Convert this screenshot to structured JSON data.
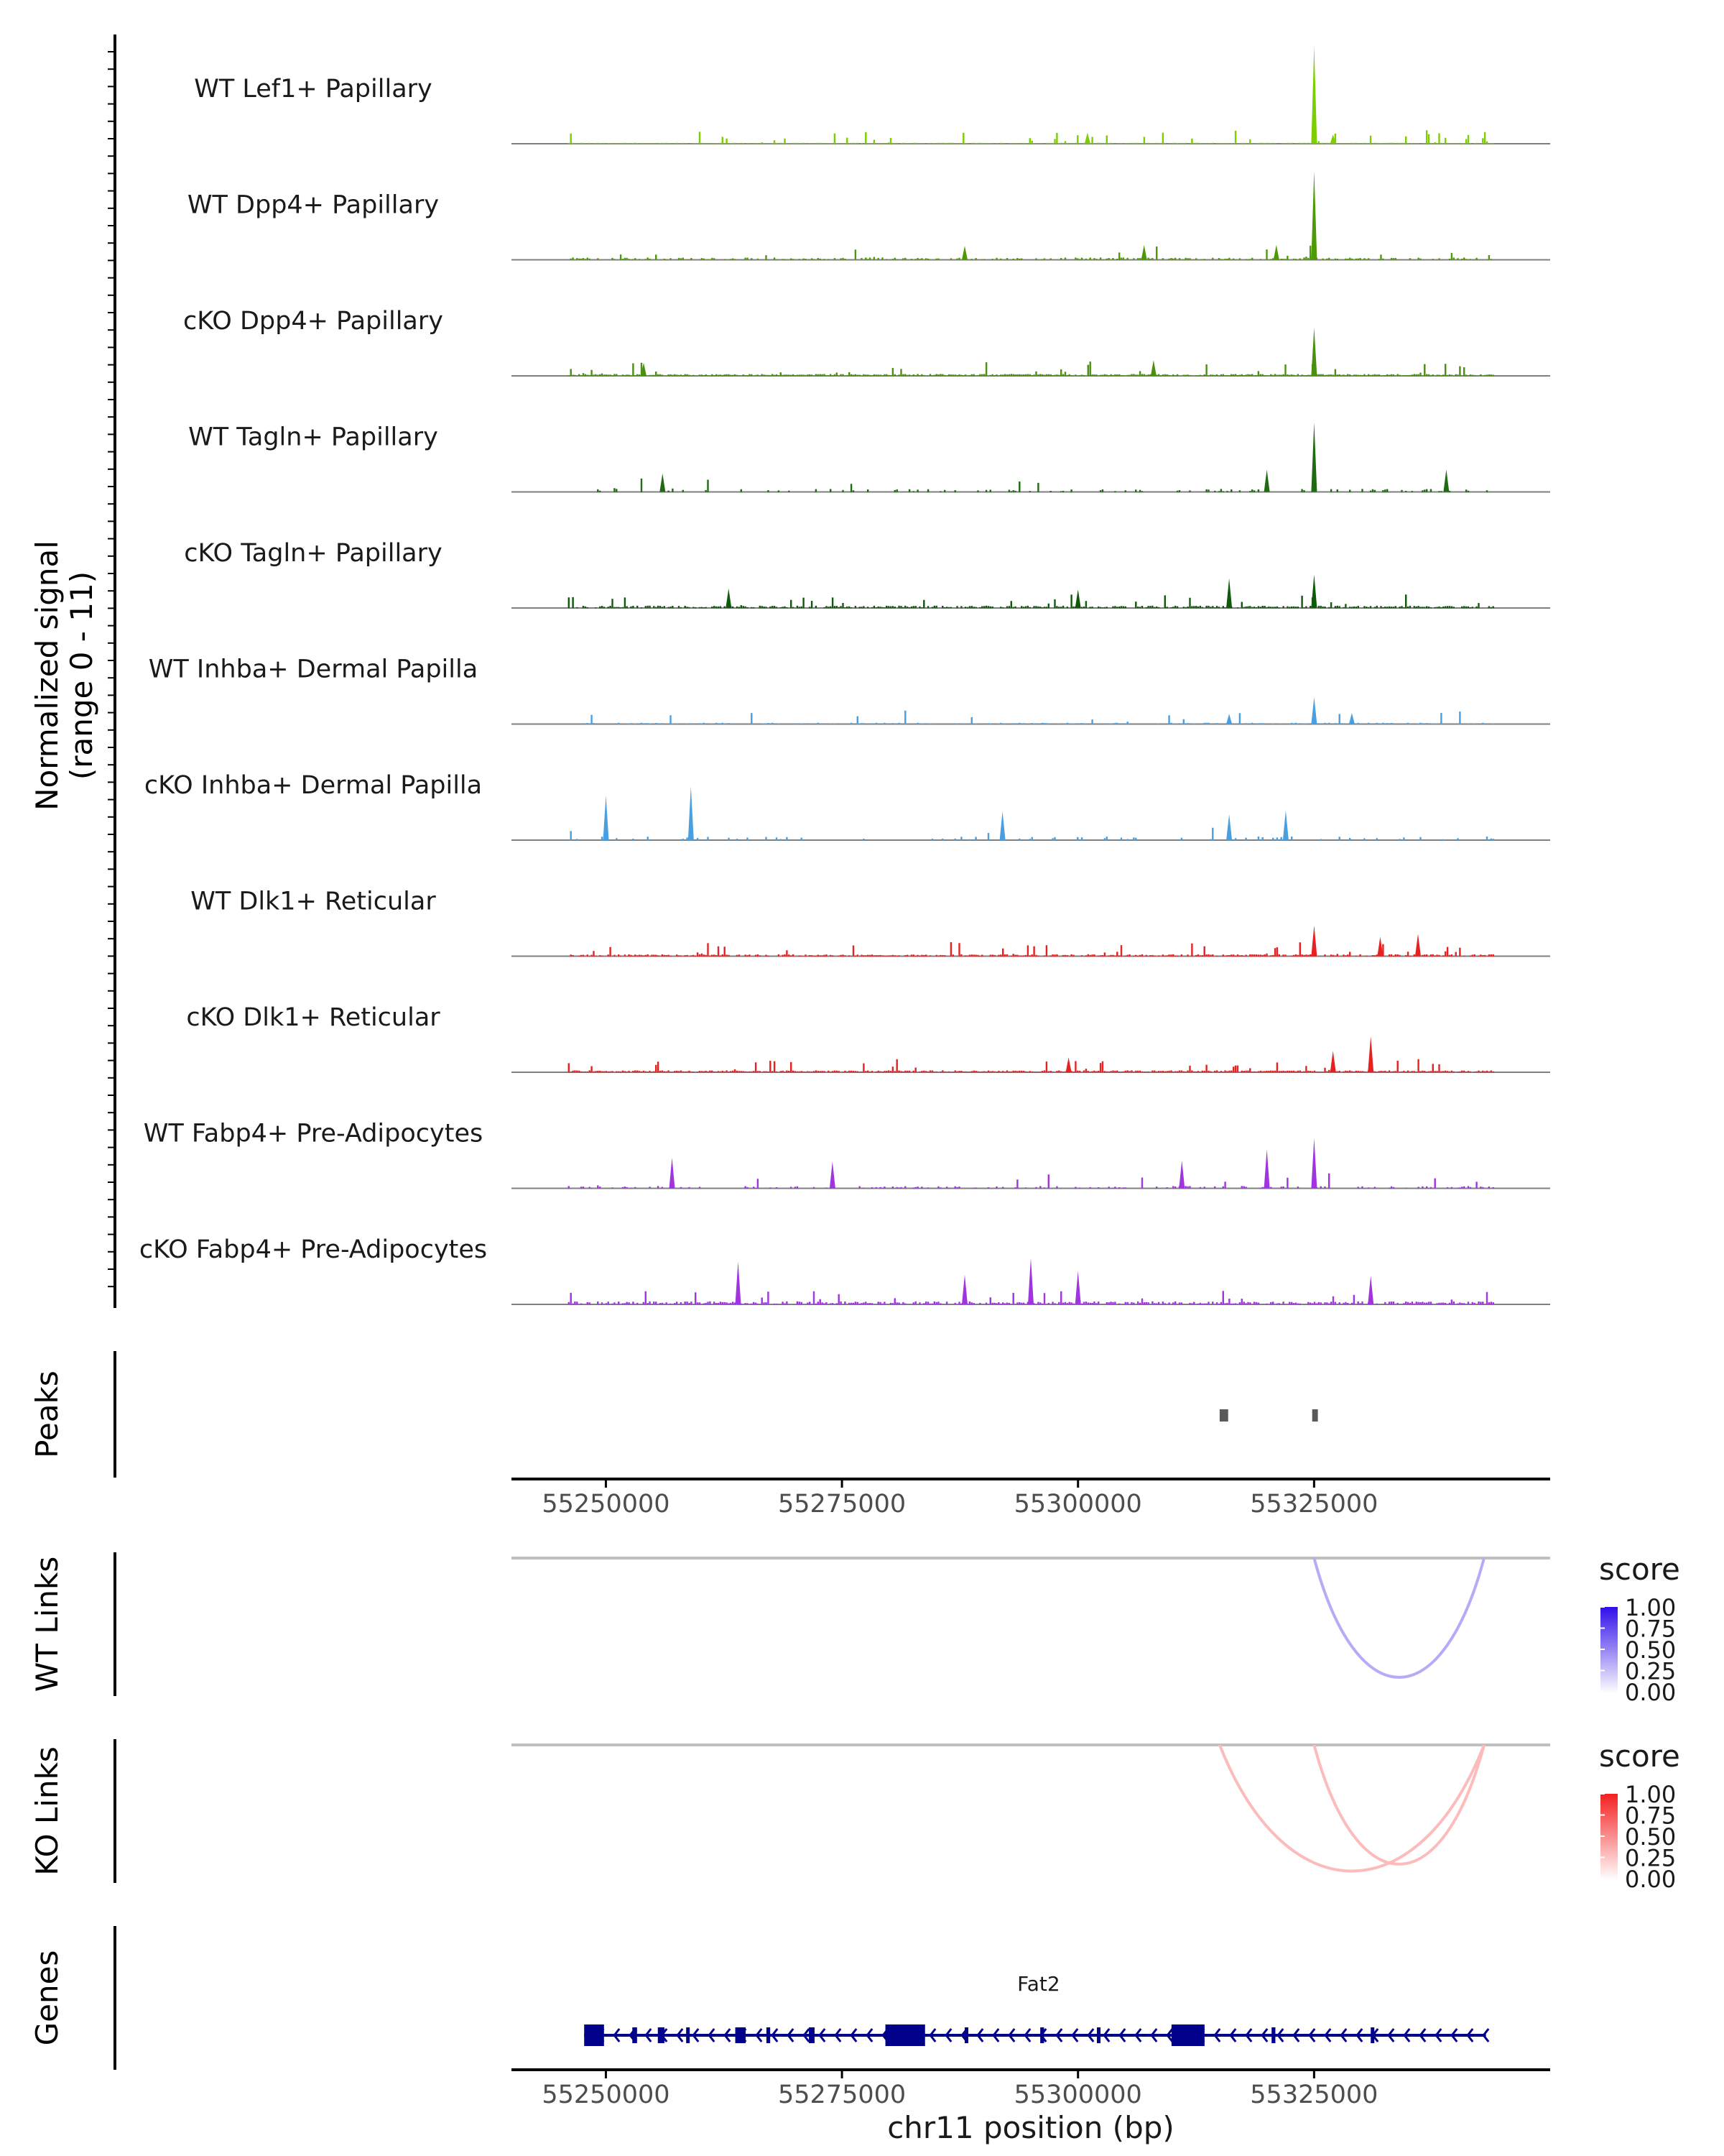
{
  "chart_data": {
    "type": "coverage",
    "title": "",
    "chromosome": "chr11",
    "x_range_bp": [
      55240000,
      55350000
    ],
    "coverage_panel": {
      "ylabel_line1": "Normalized signal",
      "ylabel_line2": "(range 0 - 11)",
      "y_range": [
        0,
        11
      ],
      "tracks": [
        {
          "name": "WT Lef1+ Papillary",
          "color": "#7cce00",
          "density": 0.95,
          "base": 0.05,
          "peaks": [
            [
              55325000,
              10.5
            ],
            [
              55301000,
              1.2
            ],
            [
              55327000,
              1.0
            ]
          ]
        },
        {
          "name": "WT Dpp4+ Papillary",
          "color": "#4e9a06",
          "density": 0.5,
          "base": 0.15,
          "peaks": [
            [
              55325000,
              9.6
            ],
            [
              55307000,
              1.6
            ],
            [
              55321000,
              1.6
            ],
            [
              55288000,
              1.5
            ]
          ]
        },
        {
          "name": "cKO Dpp4+ Papillary",
          "color": "#4a8f10",
          "density": 0.9,
          "base": 0.12,
          "peaks": [
            [
              55325000,
              5.2
            ],
            [
              55308000,
              1.7
            ],
            [
              55254000,
              1.4
            ]
          ]
        },
        {
          "name": "WT Tagln+ Papillary",
          "color": "#1e6b12",
          "density": 0.2,
          "base": 0.2,
          "peaks": [
            [
              55325000,
              7.5
            ],
            [
              55320000,
              2.4
            ],
            [
              55339000,
              2.4
            ],
            [
              55256000,
              2.0
            ]
          ]
        },
        {
          "name": "cKO Tagln+ Papillary",
          "color": "#0e5a0a",
          "density": 0.75,
          "base": 0.15,
          "peaks": [
            [
              55316000,
              3.2
            ],
            [
              55325000,
              3.6
            ],
            [
              55263000,
              2.1
            ],
            [
              55300000,
              2.0
            ]
          ]
        },
        {
          "name": "WT Inhba+ Dermal Papilla",
          "color": "#4a9fe0",
          "density": 0.35,
          "base": 0.08,
          "peaks": [
            [
              55325000,
              2.9
            ],
            [
              55316000,
              1.1
            ],
            [
              55329000,
              1.2
            ]
          ]
        },
        {
          "name": "cKO Inhba+ Dermal Papilla",
          "color": "#4a9fe0",
          "density": 0.15,
          "base": 0.25,
          "peaks": [
            [
              55259000,
              5.8
            ],
            [
              55250000,
              4.8
            ],
            [
              55292000,
              3.1
            ],
            [
              55322000,
              3.2
            ],
            [
              55316000,
              2.8
            ]
          ]
        },
        {
          "name": "WT Dlk1+ Reticular",
          "color": "#e82020",
          "density": 0.75,
          "base": 0.12,
          "peaks": [
            [
              55325000,
              3.3
            ],
            [
              55336000,
              2.4
            ],
            [
              55332000,
              2.1
            ]
          ]
        },
        {
          "name": "cKO Dlk1+ Reticular",
          "color": "#e82020",
          "density": 0.95,
          "base": 0.12,
          "peaks": [
            [
              55331000,
              3.9
            ],
            [
              55327000,
              2.3
            ],
            [
              55299000,
              1.6
            ]
          ]
        },
        {
          "name": "WT Fabp4+ Pre-Adipocytes",
          "color": "#a035e0",
          "density": 0.35,
          "base": 0.15,
          "peaks": [
            [
              55325000,
              5.4
            ],
            [
              55320000,
              4.2
            ],
            [
              55257000,
              3.3
            ],
            [
              55274000,
              2.9
            ],
            [
              55311000,
              3.0
            ]
          ]
        },
        {
          "name": "cKO Fabp4+ Pre-Adipocytes",
          "color": "#a035e0",
          "density": 0.7,
          "base": 0.2,
          "peaks": [
            [
              55295000,
              5.0
            ],
            [
              55264000,
              4.6
            ],
            [
              55300000,
              3.6
            ],
            [
              55288000,
              3.2
            ],
            [
              55331000,
              3.1
            ]
          ]
        }
      ]
    },
    "peaks_panel": {
      "label": "Peaks",
      "ranges": [
        [
          55315000,
          55315900
        ],
        [
          55324800,
          55325400
        ]
      ],
      "x_ticks": [
        55250000,
        55275000,
        55300000,
        55325000
      ]
    },
    "links_panels": [
      {
        "label": "WT Links",
        "legend_title": "score",
        "color_high": "#2f0fe8",
        "links": [
          {
            "start": 55325000,
            "end": 55343000,
            "score": 0.35
          }
        ]
      },
      {
        "label": "KO Links",
        "legend_title": "score",
        "color_high": "#f42020",
        "links": [
          {
            "start": 55315000,
            "end": 55343000,
            "score": 0.3
          },
          {
            "start": 55325000,
            "end": 55343000,
            "score": 0.3
          }
        ]
      }
    ],
    "legend_ticks": [
      "1.00",
      "0.75",
      "0.50",
      "0.25",
      "0.00"
    ],
    "genes_panel": {
      "label": "Genes",
      "gene_name": "Fat2",
      "strand": "-",
      "gene_start": 55247700,
      "gene_end": 55343200,
      "exons": [
        [
          55247700,
          55249800
        ],
        [
          55252800,
          55253300
        ],
        [
          55255500,
          55256200
        ],
        [
          55263700,
          55264800
        ],
        [
          55271500,
          55272100
        ],
        [
          55279600,
          55283800
        ],
        [
          55309900,
          55313400
        ],
        [
          55331000,
          55331300
        ],
        [
          55258500,
          55258800
        ],
        [
          55267000,
          55267400
        ],
        [
          55288000,
          55288300
        ],
        [
          55296000,
          55296400
        ],
        [
          55302000,
          55302300
        ],
        [
          55320500,
          55320900
        ]
      ],
      "color": "#00008b"
    },
    "xlabel": "chr11 position (bp)",
    "x_ticks": [
      55250000,
      55275000,
      55300000,
      55325000
    ]
  },
  "labels": {
    "x_ticks_text": [
      "55250000",
      "55275000",
      "55300000",
      "55325000"
    ]
  }
}
